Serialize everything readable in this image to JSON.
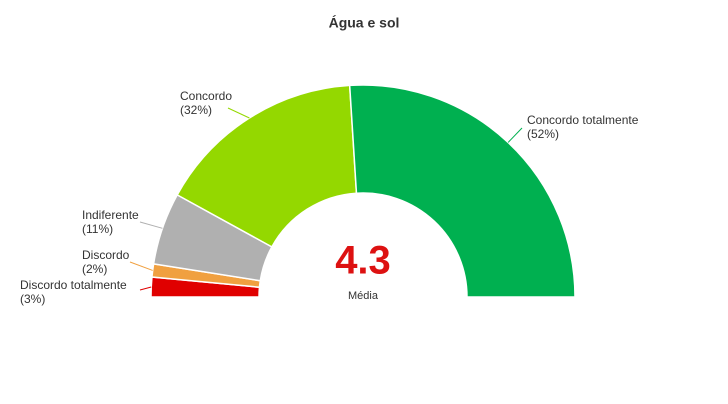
{
  "chart_data": {
    "type": "semi-donut",
    "title": "Água e sol",
    "categories": [
      "Discordo totalmente",
      "Discordo",
      "Indiferente",
      "Concordo",
      "Concordo totalmente"
    ],
    "values": [
      3,
      2,
      11,
      32,
      52
    ],
    "value_labels": [
      "(3%)",
      "(2%)",
      "(11%)",
      "(32%)",
      "(52%)"
    ],
    "colors": [
      "#e00000",
      "#f0a040",
      "#b0b0b0",
      "#94d800",
      "#00b050"
    ],
    "center_value": 4.3,
    "center_label": "Média"
  }
}
